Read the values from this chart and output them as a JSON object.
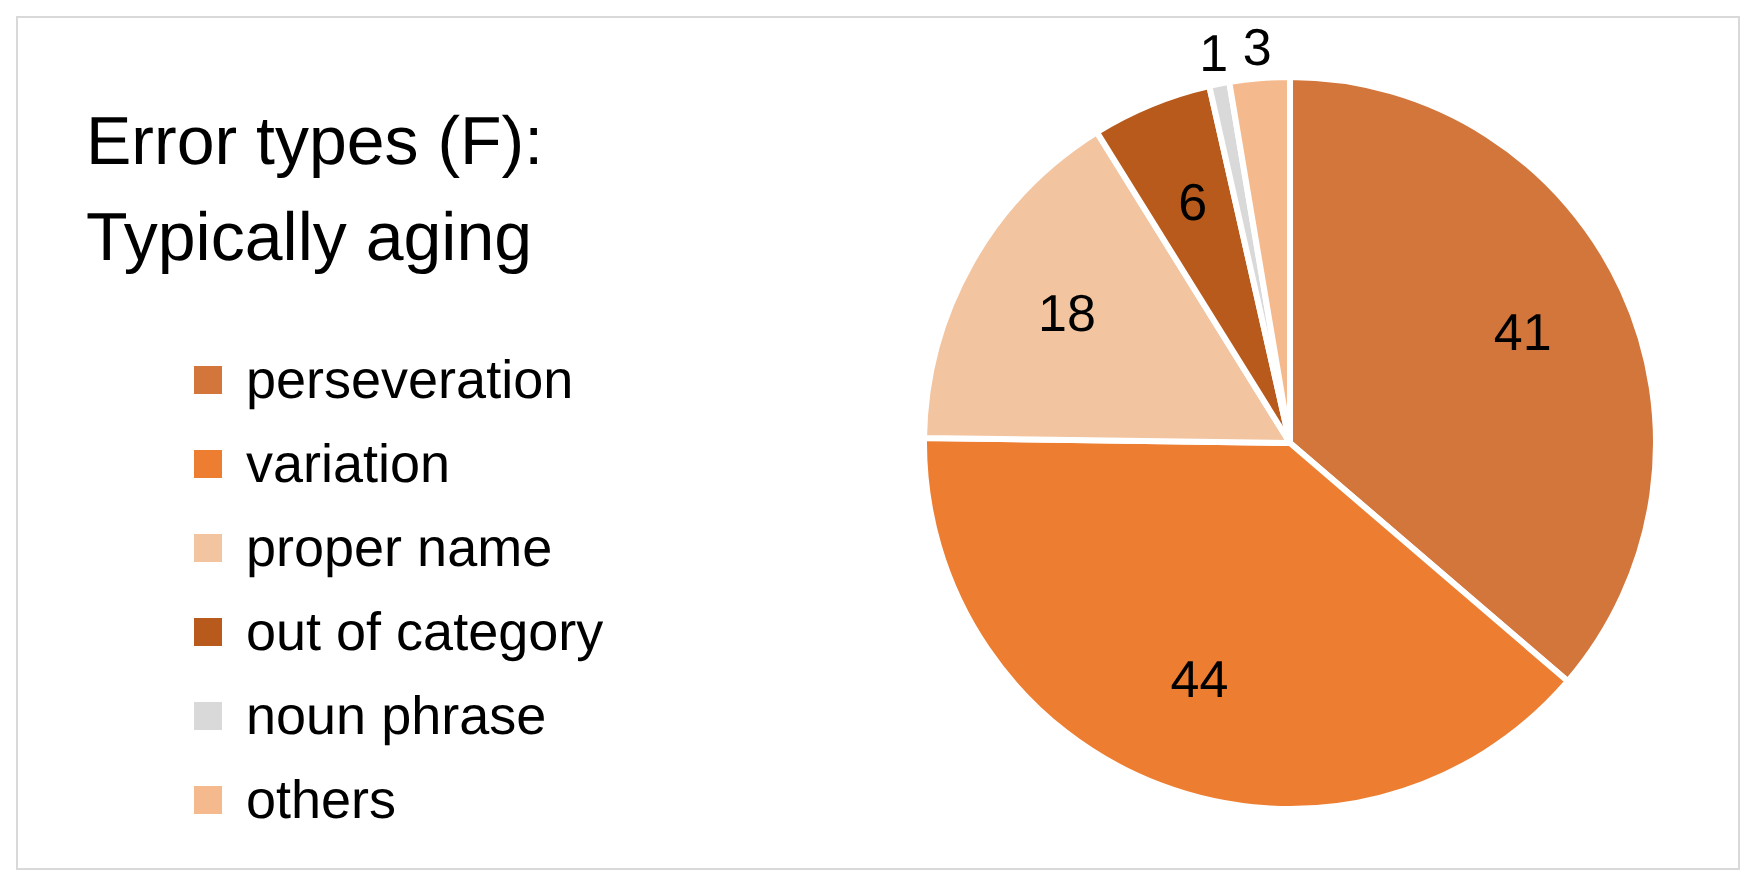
{
  "chart_data": {
    "type": "pie",
    "title": "Error types (F):\nTypically aging",
    "categories": [
      "perseveration",
      "variation",
      "proper name",
      "out of category",
      "noun phrase",
      "others"
    ],
    "values": [
      41,
      44,
      18,
      6,
      1,
      3
    ],
    "colors": [
      "#d2763c",
      "#ed7d31",
      "#f2c4a0",
      "#b85a1c",
      "#d9d9d9",
      "#f5b98e"
    ],
    "data_labels": true,
    "legend": "left"
  }
}
